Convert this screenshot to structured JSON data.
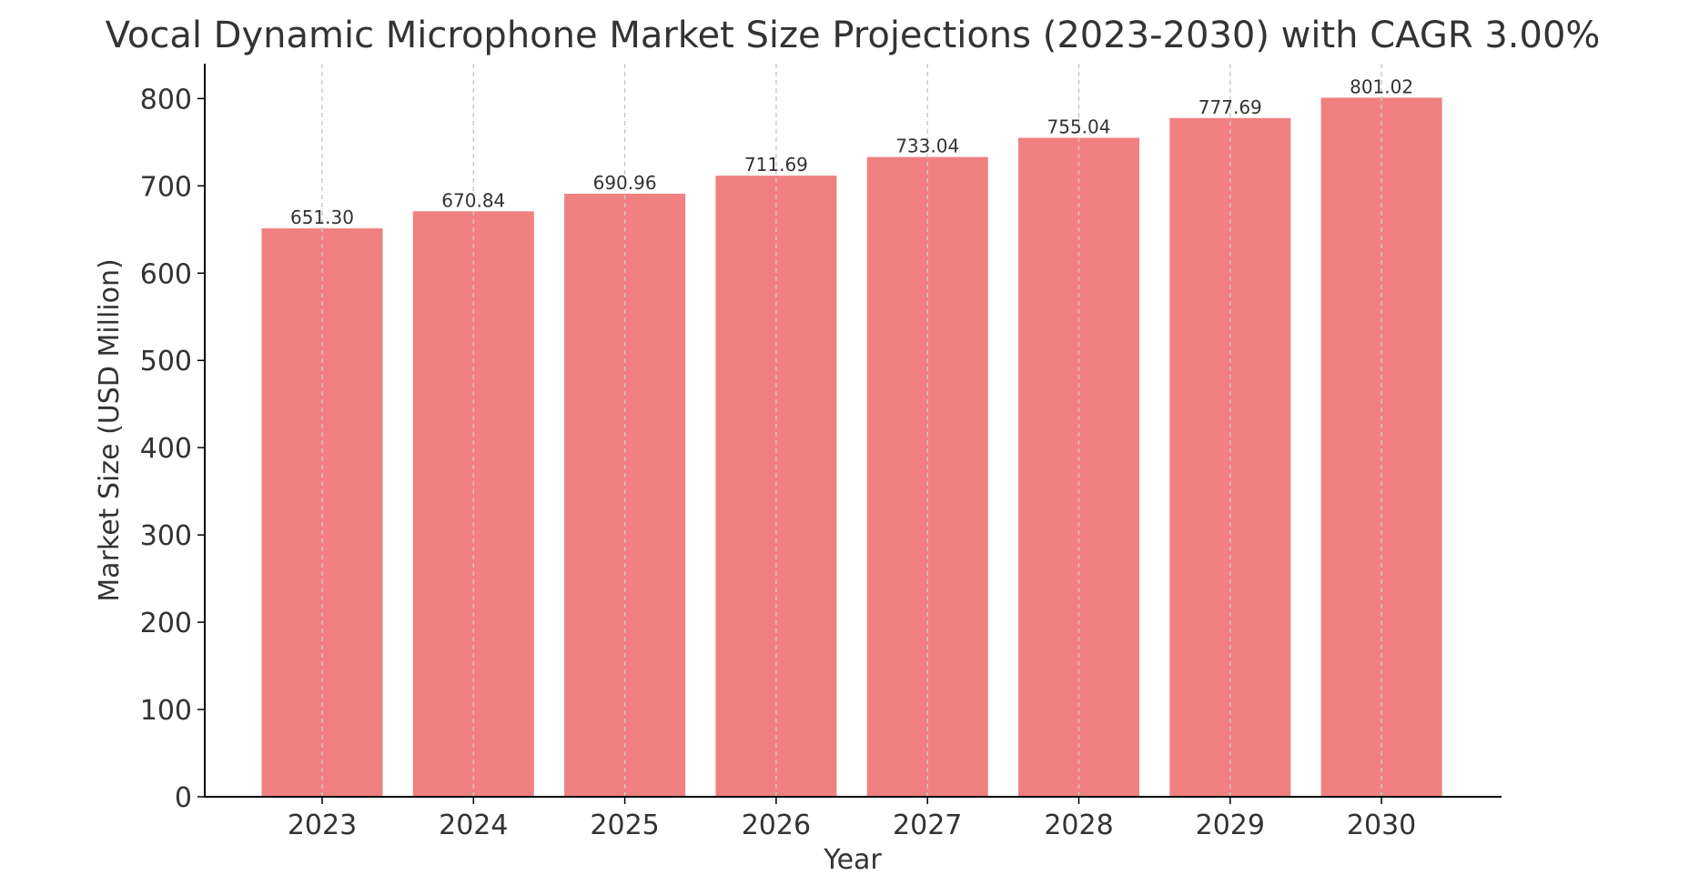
{
  "chart_data": {
    "type": "bar",
    "title": "Vocal Dynamic Microphone Market Size Projections (2023-2030) with CAGR 3.00%",
    "xlabel": "Year",
    "ylabel": "Market Size (USD Million)",
    "categories": [
      "2023",
      "2024",
      "2025",
      "2026",
      "2027",
      "2028",
      "2029",
      "2030"
    ],
    "values": [
      651.3,
      670.84,
      690.96,
      711.69,
      733.04,
      755.04,
      777.69,
      801.02
    ],
    "data_labels": [
      "651.30",
      "670.84",
      "690.96",
      "711.69",
      "733.04",
      "755.04",
      "777.69",
      "801.02"
    ],
    "ylim": [
      0,
      840
    ],
    "yticks": [
      0,
      100,
      200,
      300,
      400,
      500,
      600,
      700,
      800
    ],
    "grid": "vertical dashed",
    "legend": "none",
    "colors": {
      "bar": "#f08080",
      "text": "#333333",
      "grid": "#c8c8c8",
      "axis": "#000000"
    }
  }
}
